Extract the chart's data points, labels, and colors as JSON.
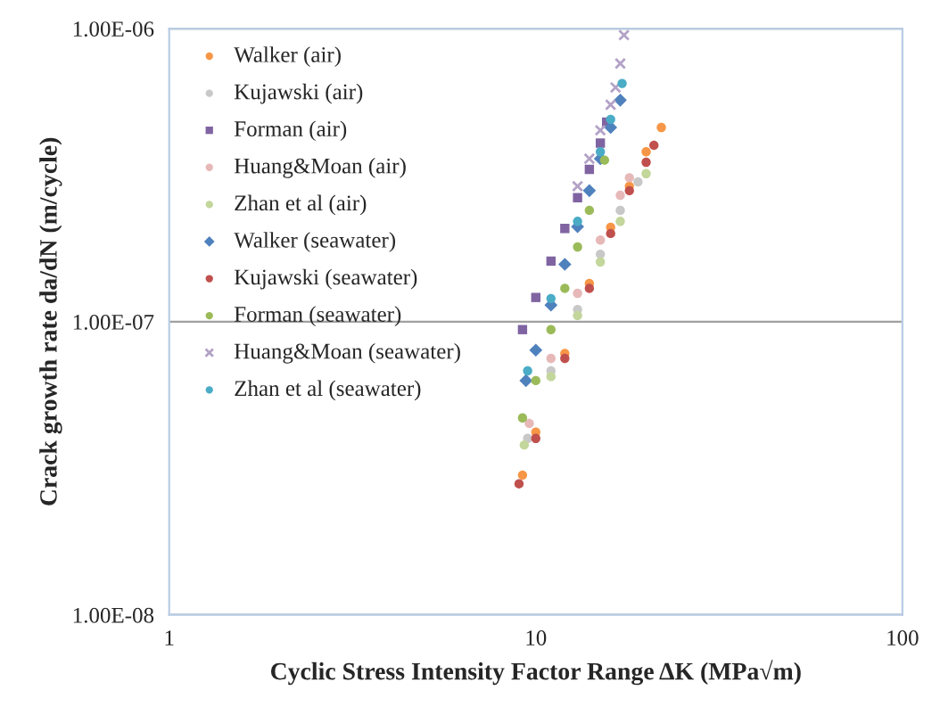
{
  "chart_data": {
    "type": "scatter",
    "xlabel": "Cyclic Stress Intensity Factor Range ΔK (MPa√m)",
    "ylabel": "Crack growth rate da/dN (m/cycle)",
    "log": "xy",
    "xlim": [
      1,
      100
    ],
    "xticks": [
      1,
      10,
      100
    ],
    "ylim": [
      1e-08,
      1e-06
    ],
    "yticks": [
      {
        "value": 1e-08,
        "label": "1.00E-08"
      },
      {
        "value": 1e-07,
        "label": "1.00E-07"
      },
      {
        "value": 1e-06,
        "label": "1.00E-06"
      }
    ],
    "grid": "y",
    "legend": "top left",
    "series": [
      {
        "name": "Walker (air)",
        "color": "#f79646",
        "marker": "circle",
        "x": [
          9.2,
          10,
          12,
          14,
          16,
          18,
          20,
          22
        ],
        "values": [
          3e-08,
          4.2e-08,
          7.8e-08,
          1.35e-07,
          2.1e-07,
          2.9e-07,
          3.8e-07,
          4.6e-07
        ]
      },
      {
        "name": "Kujawski (air)",
        "color": "#c8c8c8",
        "marker": "circle",
        "x": [
          9.5,
          11,
          13,
          15,
          17,
          19
        ],
        "values": [
          4e-08,
          6.8e-08,
          1.1e-07,
          1.7e-07,
          2.4e-07,
          3e-07
        ]
      },
      {
        "name": "Forman (air)",
        "color": "#8064a2",
        "marker": "square",
        "x": [
          9.2,
          10,
          11,
          12,
          13,
          14,
          15,
          15.6
        ],
        "values": [
          9.4e-08,
          1.21e-07,
          1.61e-07,
          2.08e-07,
          2.65e-07,
          3.31e-07,
          4.07e-07,
          4.8e-07
        ]
      },
      {
        "name": "Huang&Moan (air)",
        "color": "#e6b9b8",
        "marker": "circle",
        "x": [
          9.6,
          11,
          13,
          15,
          17,
          18
        ],
        "values": [
          4.5e-08,
          7.5e-08,
          1.25e-07,
          1.9e-07,
          2.7e-07,
          3.1e-07
        ]
      },
      {
        "name": "Zhan et al (air)",
        "color": "#c3d69b",
        "marker": "circle",
        "x": [
          9.3,
          11,
          13,
          15,
          17,
          20
        ],
        "values": [
          3.8e-08,
          6.5e-08,
          1.05e-07,
          1.6e-07,
          2.2e-07,
          3.2e-07
        ]
      },
      {
        "name": "Walker (seawater)",
        "color": "#4f81bd",
        "marker": "diamond",
        "x": [
          9.4,
          10,
          11,
          12,
          13,
          14,
          15,
          16,
          17
        ],
        "values": [
          6.3e-08,
          8e-08,
          1.14e-07,
          1.57e-07,
          2.11e-07,
          2.8e-07,
          3.6e-07,
          4.6e-07,
          5.7e-07
        ]
      },
      {
        "name": "Kujawski (seawater)",
        "color": "#c0504d",
        "marker": "circle",
        "x": [
          9.0,
          10,
          12,
          14,
          16,
          18,
          20,
          21
        ],
        "values": [
          2.8e-08,
          4e-08,
          7.5e-08,
          1.3e-07,
          2e-07,
          2.8e-07,
          3.5e-07,
          4e-07
        ]
      },
      {
        "name": "Forman (seawater)",
        "color": "#9bbb59",
        "marker": "circle",
        "x": [
          9.2,
          10,
          11,
          12,
          13,
          14,
          15.4
        ],
        "values": [
          4.7e-08,
          6.3e-08,
          9.4e-08,
          1.3e-07,
          1.8e-07,
          2.4e-07,
          3.56e-07
        ]
      },
      {
        "name": "Huang&Moan (seawater)",
        "color": "#b3a2c7",
        "marker": "cross",
        "x": [
          13,
          14,
          15,
          16,
          16.5,
          17,
          17.4
        ],
        "values": [
          2.9e-07,
          3.6e-07,
          4.5e-07,
          5.5e-07,
          6.3e-07,
          7.6e-07,
          9.5e-07
        ]
      },
      {
        "name": "Zhan et al (seawater)",
        "color": "#4bacc6",
        "marker": "circle",
        "x": [
          9.5,
          11,
          13,
          15,
          16,
          17.2
        ],
        "values": [
          6.8e-08,
          1.2e-07,
          2.2e-07,
          3.8e-07,
          4.9e-07,
          6.5e-07
        ]
      }
    ]
  }
}
